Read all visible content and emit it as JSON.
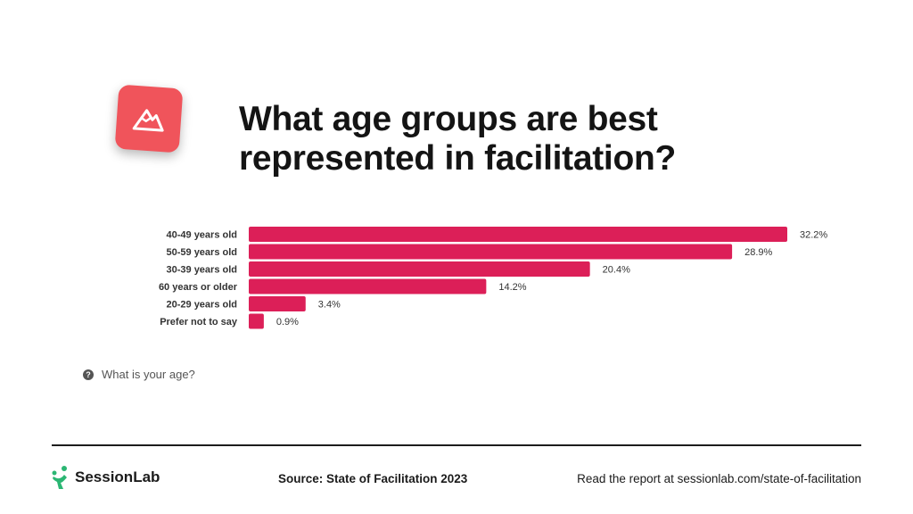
{
  "colors": {
    "bar": "#dc1f58",
    "icon_bg": "#f0545b",
    "logo_green": "#2bb673",
    "text": "#1b1b1b",
    "muted": "#555555"
  },
  "header": {
    "icon": "mountain-icon",
    "title_line1": "What age groups are best",
    "title_line2": "represented in facilitation?"
  },
  "chart_data": {
    "type": "bar",
    "orientation": "horizontal",
    "categories": [
      "40-49 years old",
      "50-59 years old",
      "30-39 years old",
      "60 years or older",
      "20-29 years old",
      "Prefer not to say"
    ],
    "values": [
      32.2,
      28.9,
      20.4,
      14.2,
      3.4,
      0.9
    ],
    "value_labels": [
      "32.2%",
      "28.9%",
      "20.4%",
      "14.2%",
      "3.4%",
      "0.9%"
    ],
    "unit": "%",
    "xlim": [
      0,
      32.2
    ],
    "grid": false,
    "legend": "none"
  },
  "question": {
    "icon": "question-icon",
    "icon_glyph": "?",
    "text": "What is your age?"
  },
  "footer": {
    "logo_icon": "sessionlab-logo-icon",
    "logo_text": "SessionLab",
    "source": "Source: State of Facilitation 2023",
    "report": "Read the report at sessionlab.com/state-of-facilitation"
  }
}
